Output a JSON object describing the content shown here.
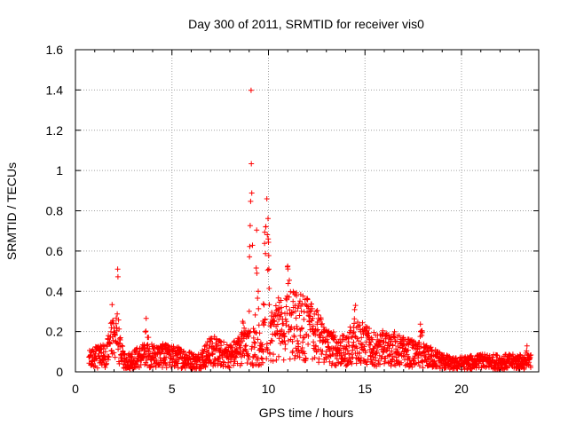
{
  "chart_data": {
    "type": "scatter",
    "title": "Day 300 of 2011, SRMTID for receiver vis0",
    "xlabel": "GPS time / hours",
    "ylabel": "SRMTID / TECUs",
    "xlim": [
      0,
      24
    ],
    "ylim": [
      0,
      1.6
    ],
    "xticks": [
      0,
      5,
      10,
      15,
      20
    ],
    "xtick_labels": [
      "0",
      "5",
      "10",
      "15",
      "20"
    ],
    "yticks": [
      0,
      0.2,
      0.4,
      0.6,
      0.8,
      1,
      1.2,
      1.4,
      1.6
    ],
    "ytick_labels": [
      "0",
      "0.2",
      "0.4",
      "0.6",
      "0.8",
      "1",
      "1.2",
      "1.4",
      "1.6"
    ],
    "grid": true,
    "marker": "+",
    "color": "#ff0000",
    "series": [
      {
        "name": "SRMTID",
        "x_range": [
          0.7,
          23.6
        ],
        "x_step": 0.012,
        "baseline_profile": [
          [
            0.7,
            0.06
          ],
          [
            1.5,
            0.08
          ],
          [
            2.0,
            0.14
          ],
          [
            2.6,
            0.05
          ],
          [
            3.5,
            0.08
          ],
          [
            4.5,
            0.08
          ],
          [
            5.5,
            0.07
          ],
          [
            6.3,
            0.05
          ],
          [
            7.0,
            0.1
          ],
          [
            8.0,
            0.08
          ],
          [
            8.8,
            0.12
          ],
          [
            9.5,
            0.12
          ],
          [
            10.3,
            0.2
          ],
          [
            11.0,
            0.24
          ],
          [
            12.0,
            0.22
          ],
          [
            12.5,
            0.18
          ],
          [
            13.2,
            0.12
          ],
          [
            14.0,
            0.1
          ],
          [
            14.5,
            0.16
          ],
          [
            15.5,
            0.11
          ],
          [
            16.5,
            0.11
          ],
          [
            17.5,
            0.09
          ],
          [
            18.5,
            0.07
          ],
          [
            19.5,
            0.04
          ],
          [
            21.0,
            0.05
          ],
          [
            22.5,
            0.05
          ],
          [
            23.6,
            0.05
          ]
        ],
        "bursts": [
          {
            "t": 1.1,
            "w": 0.35,
            "amp": 0.16
          },
          {
            "t": 1.9,
            "w": 0.25,
            "amp": 0.35
          },
          {
            "t": 2.2,
            "w": 0.2,
            "amp": 0.55
          },
          {
            "t": 3.7,
            "w": 0.15,
            "amp": 0.4
          },
          {
            "t": 4.8,
            "w": 0.25,
            "amp": 0.12
          },
          {
            "t": 7.2,
            "w": 0.3,
            "amp": 0.2
          },
          {
            "t": 8.7,
            "w": 0.35,
            "amp": 0.28
          },
          {
            "t": 9.1,
            "w": 0.15,
            "amp": 1.45
          },
          {
            "t": 9.4,
            "w": 0.15,
            "amp": 0.85
          },
          {
            "t": 9.9,
            "w": 0.25,
            "amp": 1.1
          },
          {
            "t": 10.6,
            "w": 0.3,
            "amp": 0.45
          },
          {
            "t": 11.0,
            "w": 0.2,
            "amp": 0.6
          },
          {
            "t": 11.1,
            "w": 0.05,
            "amp": 0.77
          },
          {
            "t": 12.2,
            "w": 0.3,
            "amp": 0.35
          },
          {
            "t": 14.5,
            "w": 0.15,
            "amp": 0.45
          },
          {
            "t": 15.9,
            "w": 0.2,
            "amp": 0.32
          },
          {
            "t": 16.5,
            "w": 0.2,
            "amp": 0.25
          },
          {
            "t": 17.9,
            "w": 0.25,
            "amp": 0.27
          },
          {
            "t": 21.0,
            "w": 0.3,
            "amp": 0.08
          },
          {
            "t": 23.4,
            "w": 0.15,
            "amp": 0.15
          }
        ]
      }
    ]
  }
}
